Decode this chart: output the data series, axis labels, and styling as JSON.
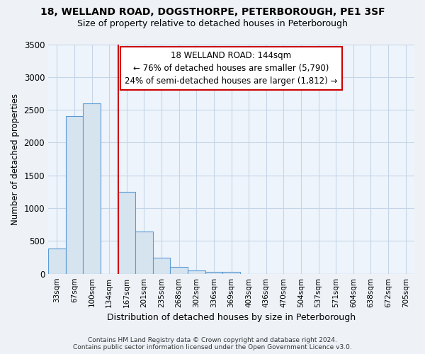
{
  "title1": "18, WELLAND ROAD, DOGSTHORPE, PETERBOROUGH, PE1 3SF",
  "title2": "Size of property relative to detached houses in Peterborough",
  "xlabel": "Distribution of detached houses by size in Peterborough",
  "ylabel": "Number of detached properties",
  "categories": [
    "33sqm",
    "67sqm",
    "100sqm",
    "134sqm",
    "167sqm",
    "201sqm",
    "235sqm",
    "268sqm",
    "302sqm",
    "336sqm",
    "369sqm",
    "403sqm",
    "436sqm",
    "470sqm",
    "504sqm",
    "537sqm",
    "571sqm",
    "604sqm",
    "638sqm",
    "672sqm",
    "705sqm"
  ],
  "values": [
    390,
    2400,
    2600,
    0,
    1250,
    640,
    250,
    100,
    50,
    30,
    30,
    0,
    0,
    0,
    0,
    0,
    0,
    0,
    0,
    0,
    0
  ],
  "bar_color": "#d6e4f0",
  "bar_edge_color": "#5b9bd5",
  "vline_x_index": 3,
  "vline_color": "#cc0000",
  "annotation_text": "18 WELLAND ROAD: 144sqm\n← 76% of detached houses are smaller (5,790)\n24% of semi-detached houses are larger (1,812) →",
  "annotation_box_color": "white",
  "annotation_box_edge_color": "#cc0000",
  "ylim": [
    0,
    3500
  ],
  "yticks": [
    0,
    500,
    1000,
    1500,
    2000,
    2500,
    3000,
    3500
  ],
  "footer1": "Contains HM Land Registry data © Crown copyright and database right 2024.",
  "footer2": "Contains public sector information licensed under the Open Government Licence v3.0.",
  "background_color": "#eef2f7",
  "plot_background_color": "#eef4fb",
  "grid_color": "#c5d5e8"
}
